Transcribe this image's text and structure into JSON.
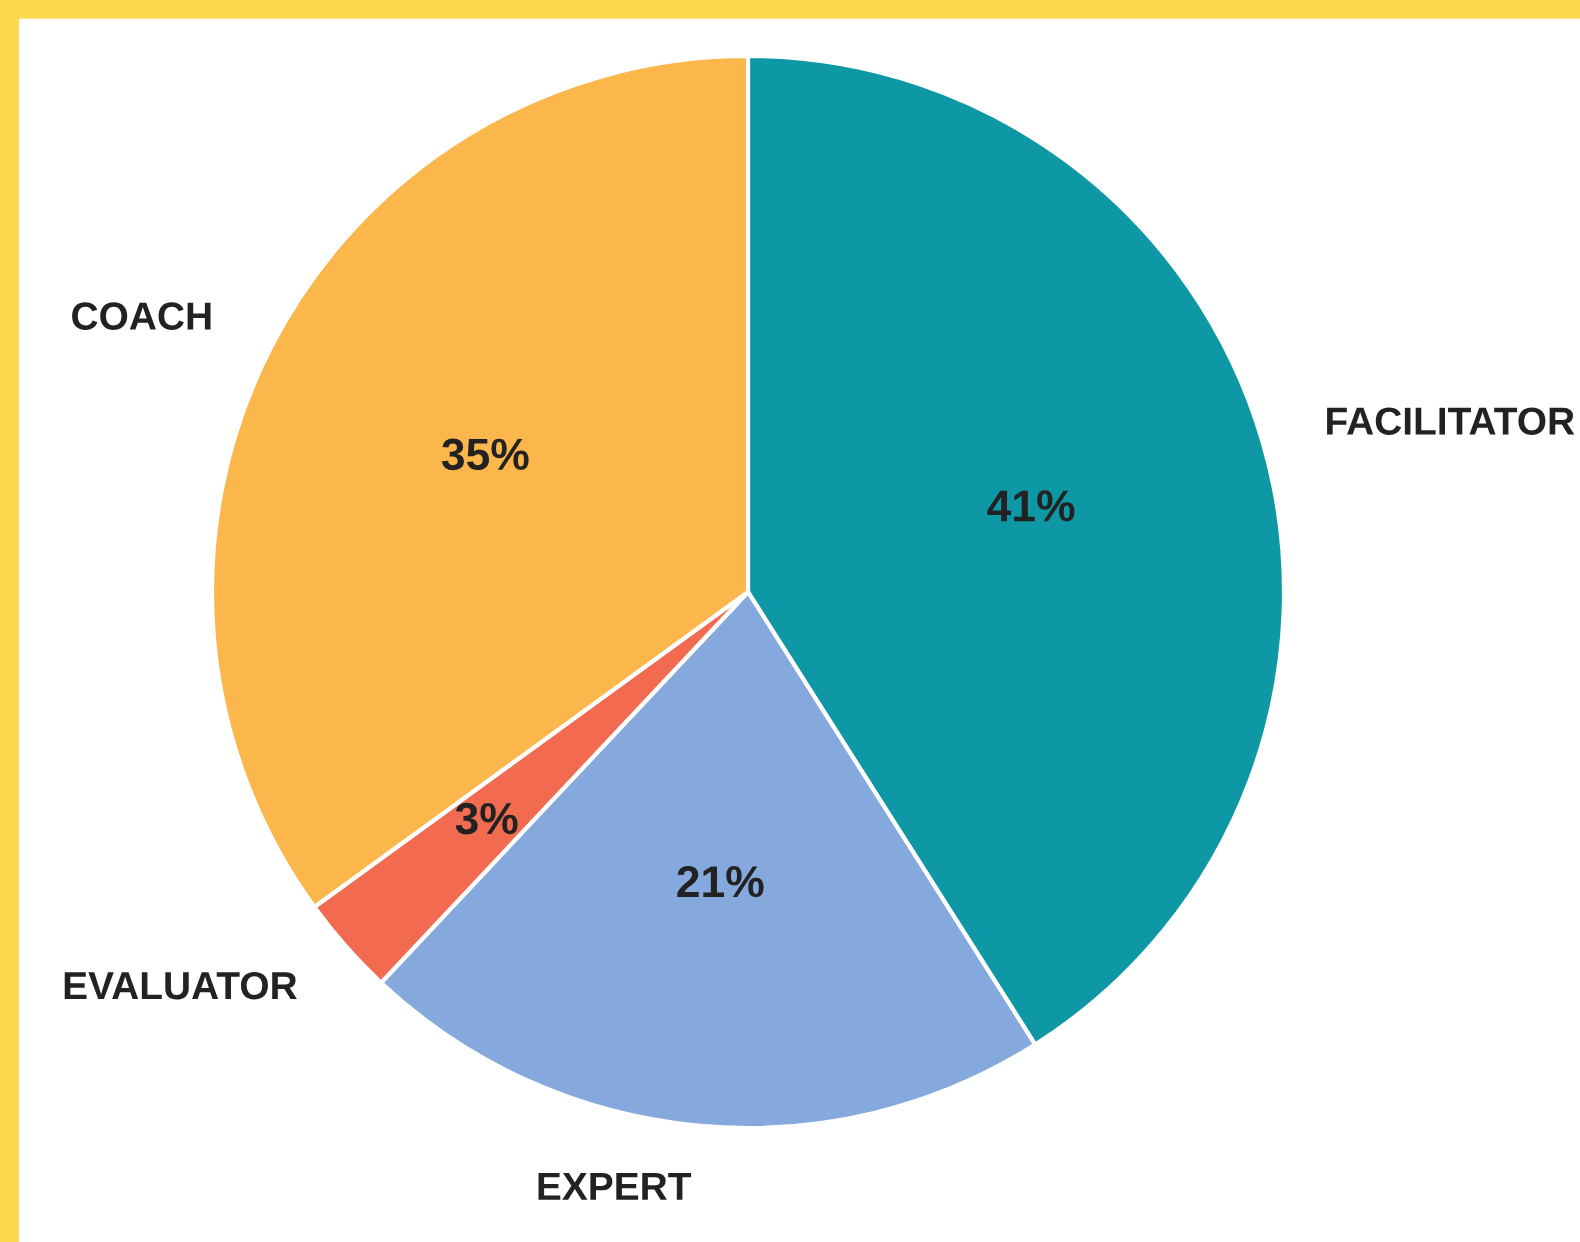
{
  "chart_data": {
    "type": "pie",
    "categories": [
      "FACILITATOR",
      "EXPERT",
      "EVALUATOR",
      "COACH"
    ],
    "values": [
      41,
      21,
      3,
      35
    ],
    "colors": [
      "#0e98a5",
      "#86a9dd",
      "#f26b50",
      "#fbb64c"
    ],
    "value_labels": [
      "41%",
      "21%",
      "3%",
      "35%"
    ]
  }
}
